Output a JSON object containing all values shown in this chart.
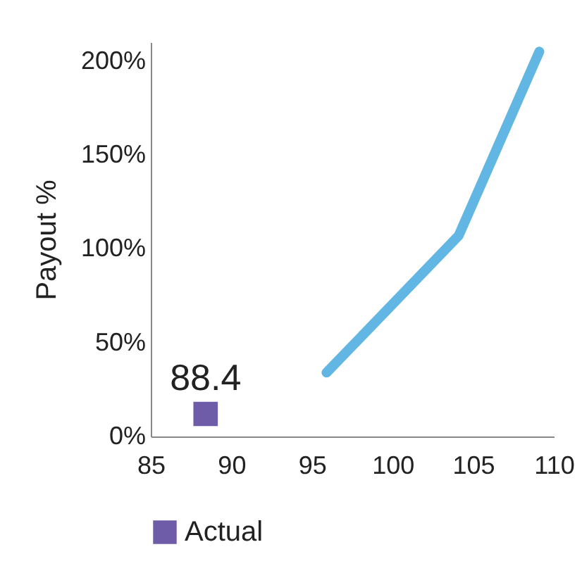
{
  "chart_data": {
    "type": "line",
    "ylabel": "Payout %",
    "series": [
      {
        "color": "#62b6e4",
        "x": [
          95.9,
          104.1,
          109.1
        ],
        "values": [
          34,
          107,
          205
        ]
      },
      {
        "type": "scatter",
        "name": "Actual",
        "color": "#6f5ca8",
        "marker": "square",
        "x": [
          88.4
        ],
        "values": [
          12
        ]
      }
    ],
    "annotations": [
      {
        "text": "88.4",
        "x": 88.4,
        "y": 12
      }
    ],
    "xlim": [
      85,
      110
    ],
    "xticks": [
      85,
      90,
      95,
      100,
      105,
      110
    ],
    "ylim": [
      0,
      210
    ],
    "yticks": [
      {
        "value": 0,
        "label": "0%"
      },
      {
        "value": 50,
        "label": "50%"
      },
      {
        "value": 100,
        "label": "100%"
      },
      {
        "value": 150,
        "label": "150%"
      },
      {
        "value": 200,
        "label": "200%"
      }
    ],
    "grid": false,
    "legend": "bottom"
  }
}
